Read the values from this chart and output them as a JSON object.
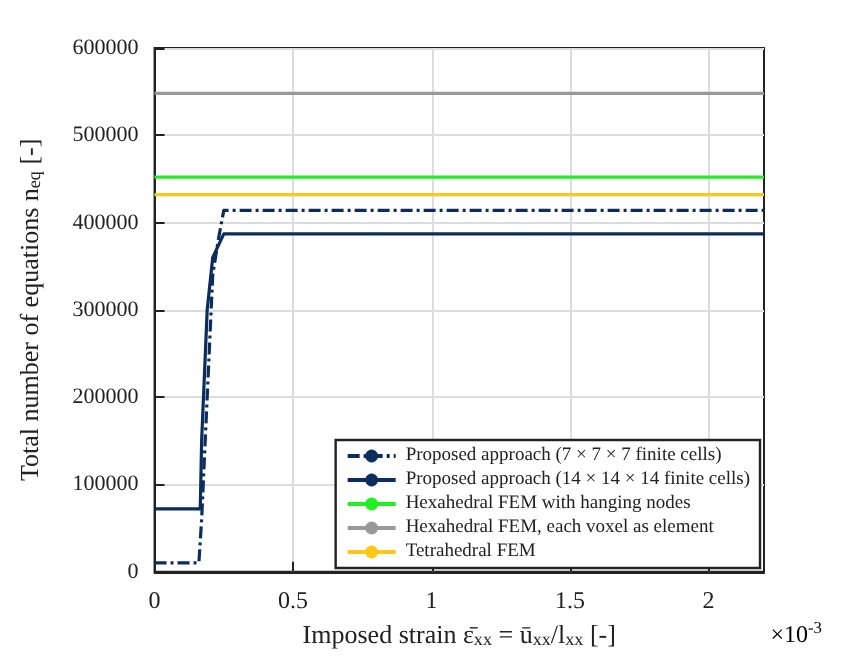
{
  "chart_data": {
    "type": "line",
    "xlabel": "Imposed strain ε̄$_{xx}$ = ū$_{xx}$/l$_{xx}$ [-]",
    "ylabel": "Total number of equations n$_{eq}$ [-]",
    "annotations": [
      "×10$^{-3}$"
    ],
    "xlim": [
      0,
      2.2
    ],
    "xticks": [
      0,
      0.5,
      1,
      1.5,
      2
    ],
    "ylim": [
      0,
      600000
    ],
    "yticks": [
      0,
      100000,
      200000,
      300000,
      400000,
      500000,
      600000
    ],
    "grid": true,
    "legend": "bottom right",
    "marker": "none",
    "series": [
      {
        "name": "Proposed approach (7 × 7 × 7 finite cells)",
        "color": "#0b2d5e",
        "line_style": "dashed",
        "x": [
          0,
          0.16,
          0.17,
          0.19,
          0.21,
          0.23,
          0.25,
          2.2
        ],
        "values": [
          10000,
          10000,
          60000,
          200000,
          340000,
          380000,
          414000,
          414000
        ]
      },
      {
        "name": "Proposed approach (14 × 14 × 14 finite cells)",
        "color": "#0b2d5e",
        "line_style": "solid",
        "x": [
          0,
          0.165,
          0.17,
          0.19,
          0.21,
          0.25,
          2.2
        ],
        "values": [
          72000,
          72000,
          150000,
          300000,
          360000,
          387000,
          387000
        ]
      },
      {
        "name": "Hexahedral FEM with hanging nodes",
        "color": "#22ee22",
        "line_style": "solid",
        "x": [
          0,
          2.2
        ],
        "values": [
          452000,
          452000
        ]
      },
      {
        "name": "Hexahedral FEM, each voxel as element",
        "color": "#999999",
        "line_style": "solid",
        "x": [
          0,
          2.2
        ],
        "values": [
          548000,
          548000
        ]
      },
      {
        "name": "Tetrahedral FEM",
        "color": "#ffc61a",
        "line_style": "solid",
        "x": [
          0,
          2.2
        ],
        "values": [
          432000,
          432000
        ]
      }
    ]
  }
}
